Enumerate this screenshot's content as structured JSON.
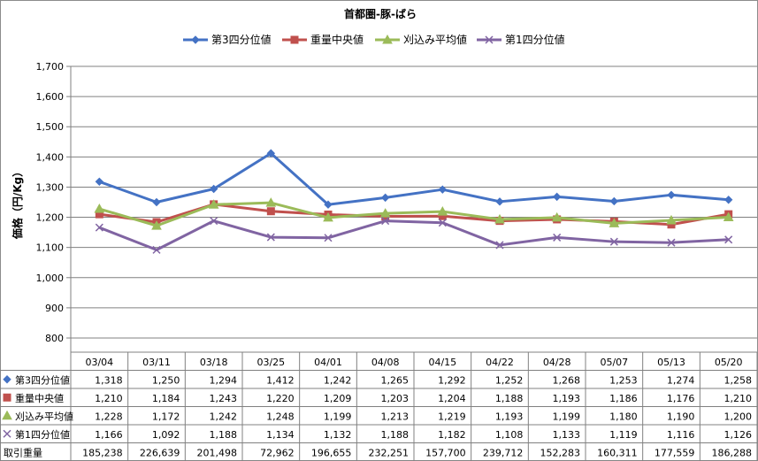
{
  "colors": {
    "q3": "#4472C4",
    "median": "#C0504D",
    "average": "#9BBB59",
    "q1": "#8064A2",
    "grid": "#808080"
  },
  "chart_data": {
    "type": "line",
    "title": "首都圏-豚-ばら",
    "ylabel": "価格（円/Kg）",
    "xlabel": "",
    "ylim": [
      800,
      1700
    ],
    "ytick_step": 100,
    "ytick_labels": [
      "800",
      "900",
      "1,000",
      "1,100",
      "1,200",
      "1,300",
      "1,400",
      "1,500",
      "1,600",
      "1,700"
    ],
    "grid": true,
    "legend_position": "top",
    "categories": [
      "03/04",
      "03/11",
      "03/18",
      "03/25",
      "04/01",
      "04/08",
      "04/15",
      "04/22",
      "04/28",
      "05/07",
      "05/13",
      "05/20"
    ],
    "series": [
      {
        "name": "第3四分位値",
        "color": "#4472C4",
        "marker": "diamond",
        "values": [
          1318,
          1250,
          1294,
          1412,
          1242,
          1265,
          1292,
          1252,
          1268,
          1253,
          1274,
          1258
        ],
        "labels": [
          "1,318",
          "1,250",
          "1,294",
          "1,412",
          "1,242",
          "1,265",
          "1,292",
          "1,252",
          "1,268",
          "1,253",
          "1,274",
          "1,258"
        ]
      },
      {
        "name": "重量中央値",
        "color": "#C0504D",
        "marker": "square",
        "values": [
          1210,
          1184,
          1243,
          1220,
          1209,
          1203,
          1204,
          1188,
          1193,
          1186,
          1176,
          1210
        ],
        "labels": [
          "1,210",
          "1,184",
          "1,243",
          "1,220",
          "1,209",
          "1,203",
          "1,204",
          "1,188",
          "1,193",
          "1,186",
          "1,176",
          "1,210"
        ]
      },
      {
        "name": "刈込み平均値",
        "color": "#9BBB59",
        "marker": "triangle",
        "values": [
          1228,
          1172,
          1242,
          1248,
          1199,
          1213,
          1219,
          1193,
          1199,
          1180,
          1190,
          1200
        ],
        "labels": [
          "1,228",
          "1,172",
          "1,242",
          "1,248",
          "1,199",
          "1,213",
          "1,219",
          "1,193",
          "1,199",
          "1,180",
          "1,190",
          "1,200"
        ]
      },
      {
        "name": "第1四分位値",
        "color": "#8064A2",
        "marker": "x",
        "values": [
          1166,
          1092,
          1188,
          1134,
          1132,
          1188,
          1182,
          1108,
          1133,
          1119,
          1116,
          1126
        ],
        "labels": [
          "1,166",
          "1,092",
          "1,188",
          "1,134",
          "1,132",
          "1,188",
          "1,182",
          "1,108",
          "1,133",
          "1,119",
          "1,116",
          "1,126"
        ]
      }
    ],
    "table_extra_row": {
      "name": "取引重量",
      "values": [
        185238,
        226639,
        201498,
        72962,
        196655,
        232251,
        157700,
        239712,
        152283,
        160311,
        177559,
        186288
      ],
      "labels": [
        "185,238",
        "226,639",
        "201,498",
        "72,962",
        "196,655",
        "232,251",
        "157,700",
        "239,712",
        "152,283",
        "160,311",
        "177,559",
        "186,288"
      ]
    }
  }
}
